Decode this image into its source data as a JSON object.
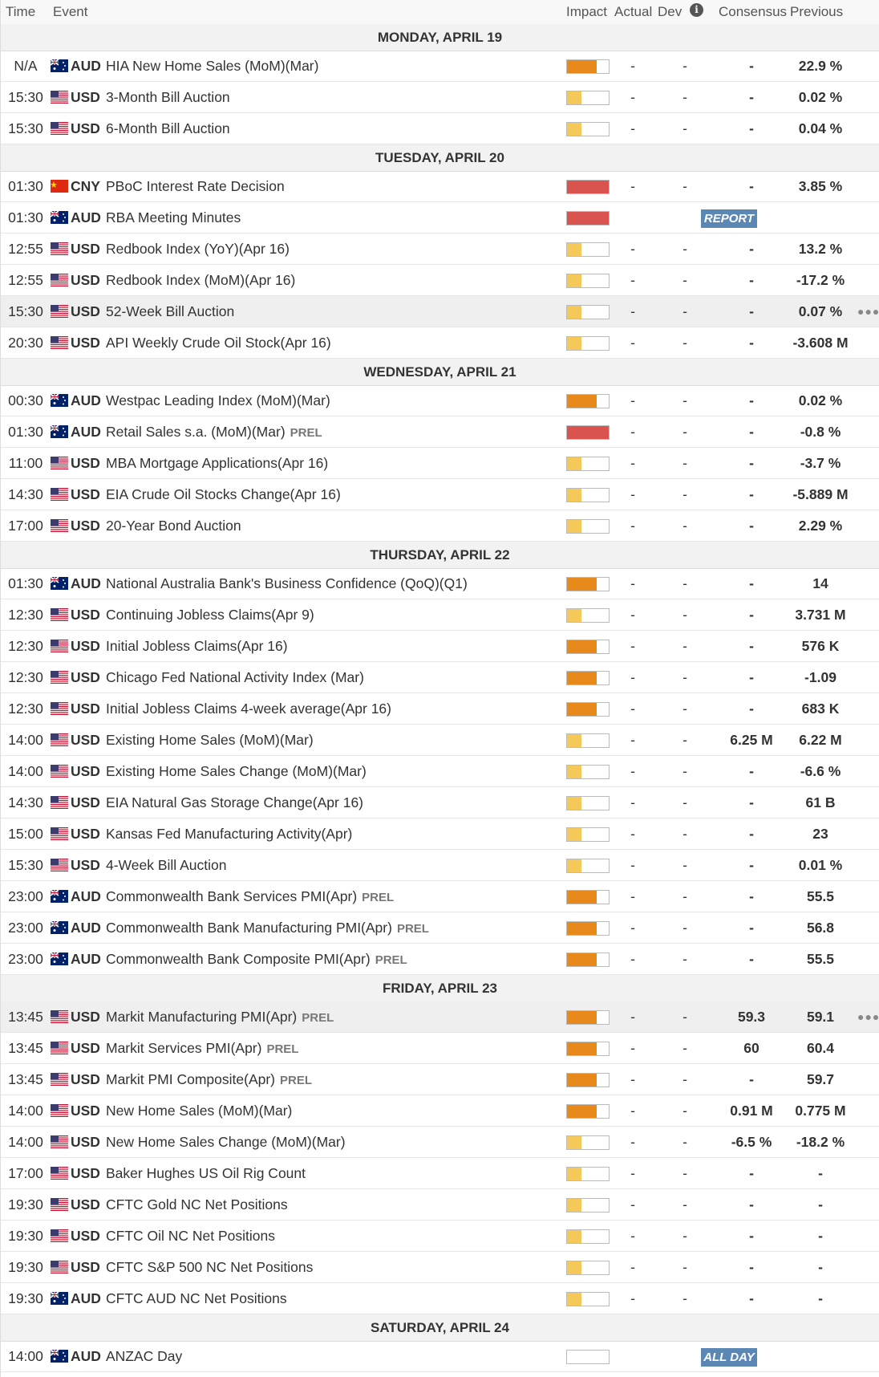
{
  "header": {
    "time": "Time",
    "event": "Event",
    "impact": "Impact",
    "actual": "Actual",
    "dev": "Dev",
    "consensus": "Consensus",
    "previous": "Previous"
  },
  "days": [
    {
      "label": "MONDAY, APRIL 19",
      "events": [
        {
          "time": "N/A",
          "currency": "AUD",
          "event": "HIA New Home Sales (MoM)(Mar)",
          "impact": "medium",
          "actual": "-",
          "dev": "-",
          "consensus": "-",
          "previous": "22.9 %"
        },
        {
          "time": "15:30",
          "currency": "USD",
          "event": "3-Month Bill Auction",
          "impact": "low",
          "actual": "-",
          "dev": "-",
          "consensus": "-",
          "previous": "0.02 %"
        },
        {
          "time": "15:30",
          "currency": "USD",
          "event": "6-Month Bill Auction",
          "impact": "low",
          "actual": "-",
          "dev": "-",
          "consensus": "-",
          "previous": "0.04 %"
        }
      ]
    },
    {
      "label": "TUESDAY, APRIL 20",
      "events": [
        {
          "time": "01:30",
          "currency": "CNY",
          "event": "PBoC Interest Rate Decision",
          "impact": "high",
          "actual": "-",
          "dev": "-",
          "consensus": "-",
          "previous": "3.85 %"
        },
        {
          "time": "01:30",
          "currency": "AUD",
          "event": "RBA Meeting Minutes",
          "impact": "high",
          "badge": "REPORT"
        },
        {
          "time": "12:55",
          "currency": "USD",
          "event": "Redbook Index (YoY)(Apr 16)",
          "impact": "low",
          "actual": "-",
          "dev": "-",
          "consensus": "-",
          "previous": "13.2 %"
        },
        {
          "time": "12:55",
          "currency": "USD",
          "event": "Redbook Index (MoM)(Apr 16)",
          "impact": "low",
          "actual": "-",
          "dev": "-",
          "consensus": "-",
          "previous": "-17.2 %"
        },
        {
          "time": "15:30",
          "currency": "USD",
          "event": "52-Week Bill Auction",
          "impact": "low",
          "actual": "-",
          "dev": "-",
          "consensus": "-",
          "previous": "0.07 %",
          "highlighted": true
        },
        {
          "time": "20:30",
          "currency": "USD",
          "event": "API Weekly Crude Oil Stock(Apr 16)",
          "impact": "low",
          "actual": "-",
          "dev": "-",
          "consensus": "-",
          "previous": "-3.608 M"
        }
      ]
    },
    {
      "label": "WEDNESDAY, APRIL 21",
      "events": [
        {
          "time": "00:30",
          "currency": "AUD",
          "event": "Westpac Leading Index (MoM)(Mar)",
          "impact": "medium",
          "actual": "-",
          "dev": "-",
          "consensus": "-",
          "previous": "0.02 %"
        },
        {
          "time": "01:30",
          "currency": "AUD",
          "event": "Retail Sales s.a. (MoM)(Mar)",
          "tag": "PREL",
          "impact": "high",
          "actual": "-",
          "dev": "-",
          "consensus": "-",
          "previous": "-0.8 %"
        },
        {
          "time": "11:00",
          "currency": "USD",
          "event": "MBA Mortgage Applications(Apr 16)",
          "impact": "low",
          "actual": "-",
          "dev": "-",
          "consensus": "-",
          "previous": "-3.7 %"
        },
        {
          "time": "14:30",
          "currency": "USD",
          "event": "EIA Crude Oil Stocks Change(Apr 16)",
          "impact": "low",
          "actual": "-",
          "dev": "-",
          "consensus": "-",
          "previous": "-5.889 M"
        },
        {
          "time": "17:00",
          "currency": "USD",
          "event": "20-Year Bond Auction",
          "impact": "low",
          "actual": "-",
          "dev": "-",
          "consensus": "-",
          "previous": "2.29 %"
        }
      ]
    },
    {
      "label": "THURSDAY, APRIL 22",
      "events": [
        {
          "time": "01:30",
          "currency": "AUD",
          "event": "National Australia Bank's Business Confidence (QoQ)(Q1)",
          "impact": "medium",
          "actual": "-",
          "dev": "-",
          "consensus": "-",
          "previous": "14"
        },
        {
          "time": "12:30",
          "currency": "USD",
          "event": "Continuing Jobless Claims(Apr 9)",
          "impact": "low",
          "actual": "-",
          "dev": "-",
          "consensus": "-",
          "previous": "3.731 M"
        },
        {
          "time": "12:30",
          "currency": "USD",
          "event": "Initial Jobless Claims(Apr 16)",
          "impact": "medium",
          "actual": "-",
          "dev": "-",
          "consensus": "-",
          "previous": "576 K"
        },
        {
          "time": "12:30",
          "currency": "USD",
          "event": "Chicago Fed National Activity Index (Mar)",
          "impact": "medium",
          "actual": "-",
          "dev": "-",
          "consensus": "-",
          "previous": "-1.09"
        },
        {
          "time": "12:30",
          "currency": "USD",
          "event": "Initial Jobless Claims 4-week average(Apr 16)",
          "impact": "medium",
          "actual": "-",
          "dev": "-",
          "consensus": "-",
          "previous": "683 K"
        },
        {
          "time": "14:00",
          "currency": "USD",
          "event": "Existing Home Sales (MoM)(Mar)",
          "impact": "low",
          "actual": "-",
          "dev": "-",
          "consensus": "6.25 M",
          "previous": "6.22 M"
        },
        {
          "time": "14:00",
          "currency": "USD",
          "event": "Existing Home Sales Change (MoM)(Mar)",
          "impact": "low",
          "actual": "-",
          "dev": "-",
          "consensus": "-",
          "previous": "-6.6 %"
        },
        {
          "time": "14:30",
          "currency": "USD",
          "event": "EIA Natural Gas Storage Change(Apr 16)",
          "impact": "low",
          "actual": "-",
          "dev": "-",
          "consensus": "-",
          "previous": "61 B"
        },
        {
          "time": "15:00",
          "currency": "USD",
          "event": "Kansas Fed Manufacturing Activity(Apr)",
          "impact": "low",
          "actual": "-",
          "dev": "-",
          "consensus": "-",
          "previous": "23"
        },
        {
          "time": "15:30",
          "currency": "USD",
          "event": "4-Week Bill Auction",
          "impact": "low",
          "actual": "-",
          "dev": "-",
          "consensus": "-",
          "previous": "0.01 %"
        },
        {
          "time": "23:00",
          "currency": "AUD",
          "event": "Commonwealth Bank Services PMI(Apr)",
          "tag": "PREL",
          "impact": "medium",
          "actual": "-",
          "dev": "-",
          "consensus": "-",
          "previous": "55.5"
        },
        {
          "time": "23:00",
          "currency": "AUD",
          "event": "Commonwealth Bank Manufacturing PMI(Apr)",
          "tag": "PREL",
          "impact": "medium",
          "actual": "-",
          "dev": "-",
          "consensus": "-",
          "previous": "56.8"
        },
        {
          "time": "23:00",
          "currency": "AUD",
          "event": "Commonwealth Bank Composite PMI(Apr)",
          "tag": "PREL",
          "impact": "medium",
          "actual": "-",
          "dev": "-",
          "consensus": "-",
          "previous": "55.5"
        }
      ]
    },
    {
      "label": "FRIDAY, APRIL 23",
      "events": [
        {
          "time": "13:45",
          "currency": "USD",
          "event": "Markit Manufacturing PMI(Apr)",
          "tag": "PREL",
          "impact": "medium",
          "actual": "-",
          "dev": "-",
          "consensus": "59.3",
          "previous": "59.1",
          "highlighted": true
        },
        {
          "time": "13:45",
          "currency": "USD",
          "event": "Markit Services PMI(Apr)",
          "tag": "PREL",
          "impact": "medium",
          "actual": "-",
          "dev": "-",
          "consensus": "60",
          "previous": "60.4"
        },
        {
          "time": "13:45",
          "currency": "USD",
          "event": "Markit PMI Composite(Apr)",
          "tag": "PREL",
          "impact": "medium",
          "actual": "-",
          "dev": "-",
          "consensus": "-",
          "previous": "59.7"
        },
        {
          "time": "14:00",
          "currency": "USD",
          "event": "New Home Sales (MoM)(Mar)",
          "impact": "medium",
          "actual": "-",
          "dev": "-",
          "consensus": "0.91 M",
          "previous": "0.775 M"
        },
        {
          "time": "14:00",
          "currency": "USD",
          "event": "New Home Sales Change (MoM)(Mar)",
          "impact": "low",
          "actual": "-",
          "dev": "-",
          "consensus": "-6.5 %",
          "previous": "-18.2 %"
        },
        {
          "time": "17:00",
          "currency": "USD",
          "event": "Baker Hughes US Oil Rig Count",
          "impact": "low",
          "actual": "-",
          "dev": "-",
          "consensus": "-",
          "previous": "-"
        },
        {
          "time": "19:30",
          "currency": "USD",
          "event": "CFTC Gold NC Net Positions",
          "impact": "low",
          "actual": "-",
          "dev": "-",
          "consensus": "-",
          "previous": "-"
        },
        {
          "time": "19:30",
          "currency": "USD",
          "event": "CFTC Oil NC Net Positions",
          "impact": "low",
          "actual": "-",
          "dev": "-",
          "consensus": "-",
          "previous": "-"
        },
        {
          "time": "19:30",
          "currency": "USD",
          "event": "CFTC S&P 500 NC Net Positions",
          "impact": "low",
          "actual": "-",
          "dev": "-",
          "consensus": "-",
          "previous": "-"
        },
        {
          "time": "19:30",
          "currency": "AUD",
          "event": "CFTC AUD NC Net Positions",
          "impact": "low",
          "actual": "-",
          "dev": "-",
          "consensus": "-",
          "previous": "-"
        }
      ]
    },
    {
      "label": "SATURDAY, APRIL 24",
      "events": [
        {
          "time": "14:00",
          "currency": "AUD",
          "event": "ANZAC Day",
          "impact": "none",
          "badge": "ALL DAY"
        }
      ]
    }
  ]
}
